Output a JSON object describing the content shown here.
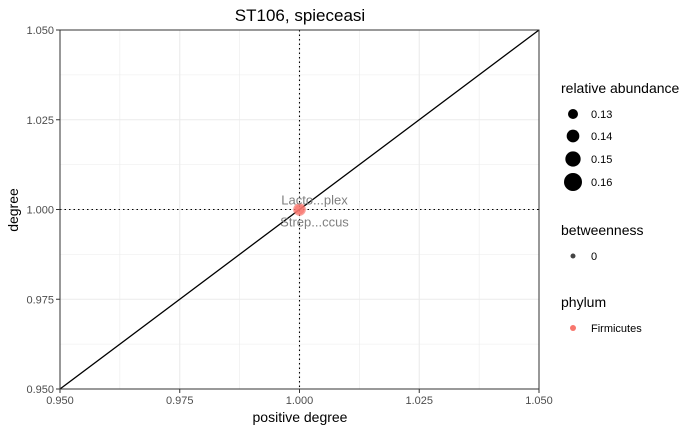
{
  "chart_data": {
    "type": "scatter",
    "title": "ST106, spieceasi",
    "xlabel": "positive degree",
    "ylabel": "degree",
    "xlim": [
      0.95,
      1.05
    ],
    "ylim": [
      0.95,
      1.05
    ],
    "x_ticks": [
      "0.950",
      "0.975",
      "1.000",
      "1.025",
      "1.050"
    ],
    "y_ticks": [
      "0.950",
      "0.975",
      "1.000",
      "1.025",
      "1.050"
    ],
    "x_tick_values": [
      0.95,
      0.975,
      1.0,
      1.025,
      1.05
    ],
    "y_tick_values": [
      0.95,
      0.975,
      1.0,
      1.025,
      1.05
    ],
    "grid": true,
    "reference_lines": {
      "diagonal": "y = x",
      "vertical": 1.0,
      "horizontal": 1.0
    },
    "points": [
      {
        "x": 1.0,
        "y": 1.0,
        "label": "Lacto...plex",
        "phylum": "Firmicutes",
        "relative_abundance": 0.14,
        "betweenness": 0
      },
      {
        "x": 1.0,
        "y": 1.0,
        "label": "Strep...ccus",
        "phylum": "Firmicutes",
        "relative_abundance": 0.13,
        "betweenness": 0
      }
    ],
    "legend_placement": "right",
    "legends": {
      "abundance": {
        "title": "relative abundance",
        "values": [
          0.13,
          0.14,
          0.15,
          0.16
        ],
        "labels": [
          "0.13",
          "0.14",
          "0.15",
          "0.16"
        ]
      },
      "betweenness": {
        "title": "betweenness",
        "labels": [
          "0"
        ]
      },
      "phylum": {
        "title": "phylum",
        "labels": [
          "Firmicutes"
        ]
      }
    },
    "colors": {
      "Firmicutes": "#F8766D",
      "line": "#000000",
      "grid": "#ebebeb",
      "point_label": "#7f7f7f"
    }
  }
}
